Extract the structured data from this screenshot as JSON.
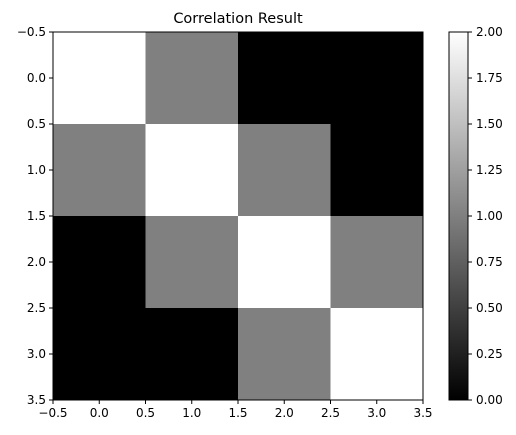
{
  "chart_data": {
    "type": "heatmap",
    "title": "Correlation Result",
    "xlabel": "",
    "ylabel": "",
    "colormap": "gray",
    "matrix": [
      [
        2,
        1,
        0,
        0
      ],
      [
        1,
        2,
        1,
        0
      ],
      [
        0,
        1,
        2,
        1
      ],
      [
        0,
        0,
        1,
        2
      ]
    ],
    "xlim": [
      -0.5,
      3.5
    ],
    "ylim": [
      3.5,
      -0.5
    ],
    "x_ticks": [
      -0.5,
      0.0,
      0.5,
      1.0,
      1.5,
      2.0,
      2.5,
      3.0,
      3.5
    ],
    "x_tick_labels": [
      "−0.5",
      "0.0",
      "0.5",
      "1.0",
      "1.5",
      "2.0",
      "2.5",
      "3.0",
      "3.5"
    ],
    "y_ticks": [
      -0.5,
      0.0,
      0.5,
      1.0,
      1.5,
      2.0,
      2.5,
      3.0,
      3.5
    ],
    "y_tick_labels": [
      "−0.5",
      "0.0",
      "0.5",
      "1.0",
      "1.5",
      "2.0",
      "2.5",
      "3.0",
      "3.5"
    ],
    "colorbar": {
      "range": [
        0.0,
        2.0
      ],
      "ticks": [
        0.0,
        0.25,
        0.5,
        0.75,
        1.0,
        1.25,
        1.5,
        1.75,
        2.0
      ],
      "tick_labels": [
        "0.00",
        "0.25",
        "0.50",
        "0.75",
        "1.00",
        "1.25",
        "1.50",
        "1.75",
        "2.00"
      ]
    },
    "grid": false
  }
}
